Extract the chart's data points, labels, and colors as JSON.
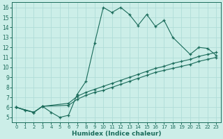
{
  "xlabel": "Humidex (Indice chaleur)",
  "bg_color": "#cceee8",
  "grid_color": "#b0ddd8",
  "line_color": "#1a6b5a",
  "xlim": [
    -0.5,
    23.5
  ],
  "ylim": [
    4.5,
    16.5
  ],
  "xticks": [
    0,
    1,
    2,
    3,
    4,
    5,
    6,
    7,
    8,
    9,
    10,
    11,
    12,
    13,
    14,
    15,
    16,
    17,
    18,
    19,
    20,
    21,
    22,
    23
  ],
  "yticks": [
    5,
    6,
    7,
    8,
    9,
    10,
    11,
    12,
    13,
    14,
    15,
    16
  ],
  "line1_x": [
    0,
    1,
    2,
    3,
    4,
    5,
    6,
    7,
    8,
    9,
    10,
    11,
    12,
    13,
    14,
    15,
    16,
    17,
    18,
    20,
    21,
    22,
    23
  ],
  "line1_y": [
    6.0,
    5.7,
    5.5,
    6.1,
    5.5,
    5.0,
    5.2,
    7.3,
    8.6,
    12.4,
    16.0,
    15.5,
    16.0,
    15.3,
    14.2,
    15.3,
    14.1,
    14.7,
    13.0,
    11.3,
    12.0,
    11.9,
    11.2
  ],
  "line2_x": [
    0,
    2,
    3,
    6,
    7,
    8,
    9,
    10,
    11,
    12,
    13,
    14,
    15,
    16,
    17,
    18,
    19,
    20,
    21,
    22,
    23
  ],
  "line2_y": [
    6.0,
    5.5,
    6.1,
    6.4,
    7.1,
    7.5,
    7.8,
    8.1,
    8.4,
    8.7,
    9.0,
    9.3,
    9.6,
    9.9,
    10.1,
    10.4,
    10.6,
    10.8,
    11.1,
    11.3,
    11.5
  ],
  "line3_x": [
    0,
    2,
    3,
    6,
    7,
    8,
    9,
    10,
    11,
    12,
    13,
    14,
    15,
    16,
    17,
    18,
    19,
    20,
    21,
    22,
    23
  ],
  "line3_y": [
    6.0,
    5.5,
    6.1,
    6.2,
    6.8,
    7.2,
    7.5,
    7.7,
    8.0,
    8.3,
    8.6,
    8.9,
    9.2,
    9.5,
    9.7,
    9.9,
    10.1,
    10.3,
    10.6,
    10.8,
    11.0
  ]
}
